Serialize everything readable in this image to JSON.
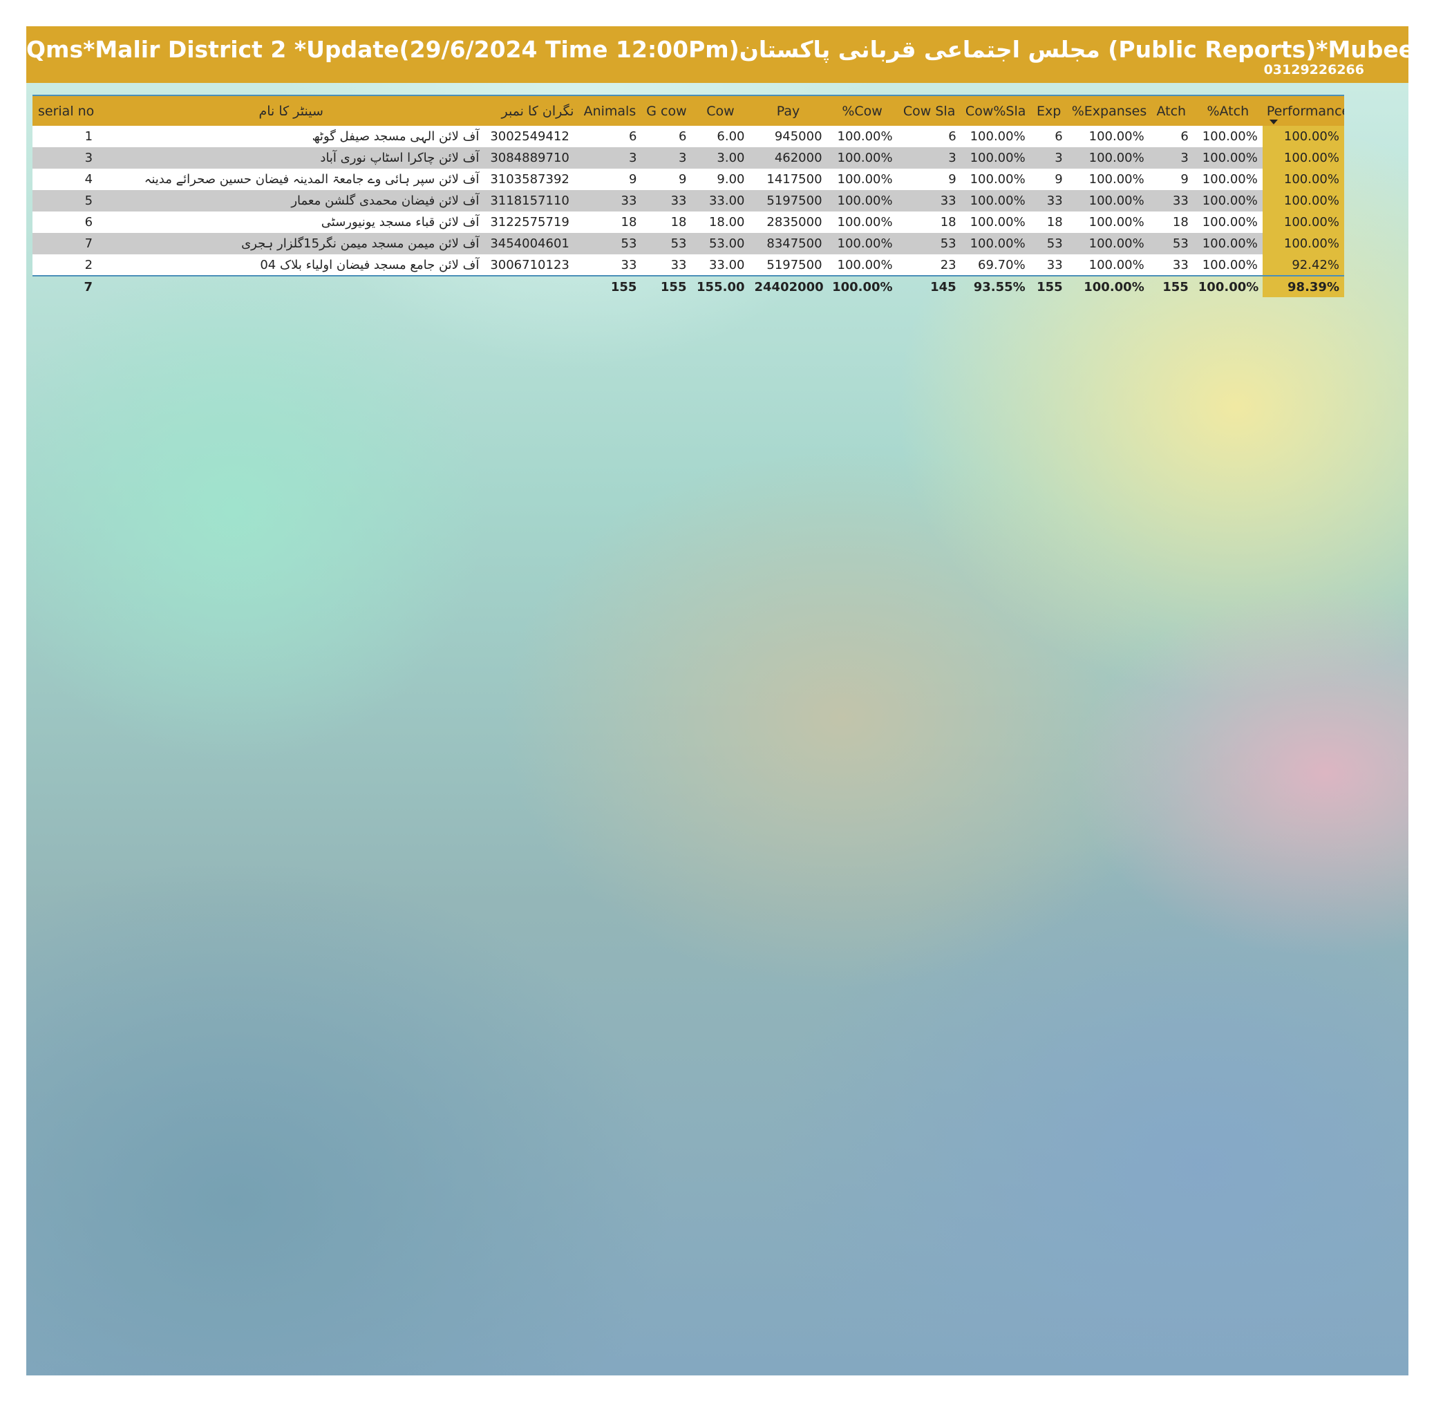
{
  "header": {
    "title": "Qms*Malir District 2 *Update(29/6/2024 Time 12:00Pm)مجلس اجتماعی قربانی پاکستان (Public Reports)*Mubeen Attari",
    "phone": "03129226266"
  },
  "colors": {
    "header_gold": "#d9a62a",
    "performance_cell": "#e0bc3c",
    "row_alt": "#cbcbcb",
    "accent_line": "#4a8fb8"
  },
  "table": {
    "columns": [
      "serial no",
      "سینٹر کا نام",
      "نگران کا نمبر",
      "Animals",
      "G cow",
      "Cow",
      "Pay",
      "%Cow",
      "Cow Sla",
      "Cow%Sla",
      "Exp",
      "%Expanses",
      "Atch",
      "%Atch",
      "Performance"
    ],
    "sorted_column": "Performance",
    "rows": [
      [
        "1",
        "آف لائن الہی مسجد صیفل گوٹھ",
        "3002549412",
        "6",
        "6",
        "6.00",
        "945000",
        "100.00%",
        "6",
        "100.00%",
        "6",
        "100.00%",
        "6",
        "100.00%",
        "100.00%"
      ],
      [
        "3",
        "آف لائن چاکرا اسٹاپ نوری آباد",
        "3084889710",
        "3",
        "3",
        "3.00",
        "462000",
        "100.00%",
        "3",
        "100.00%",
        "3",
        "100.00%",
        "3",
        "100.00%",
        "100.00%"
      ],
      [
        "4",
        "آف لائن سپر ہائی وے جامعۃ المدینہ فیضان حسین صحرائے مدینہ",
        "3103587392",
        "9",
        "9",
        "9.00",
        "1417500",
        "100.00%",
        "9",
        "100.00%",
        "9",
        "100.00%",
        "9",
        "100.00%",
        "100.00%"
      ],
      [
        "5",
        "آف لائن فیضان محمدی گلشن معمار",
        "3118157110",
        "33",
        "33",
        "33.00",
        "5197500",
        "100.00%",
        "33",
        "100.00%",
        "33",
        "100.00%",
        "33",
        "100.00%",
        "100.00%"
      ],
      [
        "6",
        "آف لائن قباء مسجد یونیورسٹی",
        "3122575719",
        "18",
        "18",
        "18.00",
        "2835000",
        "100.00%",
        "18",
        "100.00%",
        "18",
        "100.00%",
        "18",
        "100.00%",
        "100.00%"
      ],
      [
        "7",
        "آف لائن میمن مسجد میمن نگر15گلزار ہجری",
        "3454004601",
        "53",
        "53",
        "53.00",
        "8347500",
        "100.00%",
        "53",
        "100.00%",
        "53",
        "100.00%",
        "53",
        "100.00%",
        "100.00%"
      ],
      [
        "2",
        "آف لائن جامع مسجد فیضان اولیاء بلاک 04",
        "3006710123",
        "33",
        "33",
        "33.00",
        "5197500",
        "100.00%",
        "23",
        "69.70%",
        "33",
        "100.00%",
        "33",
        "100.00%",
        "92.42%"
      ]
    ],
    "totals": [
      "7",
      "",
      "",
      "155",
      "155",
      "155.00",
      "24402000",
      "100.00%",
      "145",
      "93.55%",
      "155",
      "100.00%",
      "155",
      "100.00%",
      "98.39%"
    ]
  }
}
